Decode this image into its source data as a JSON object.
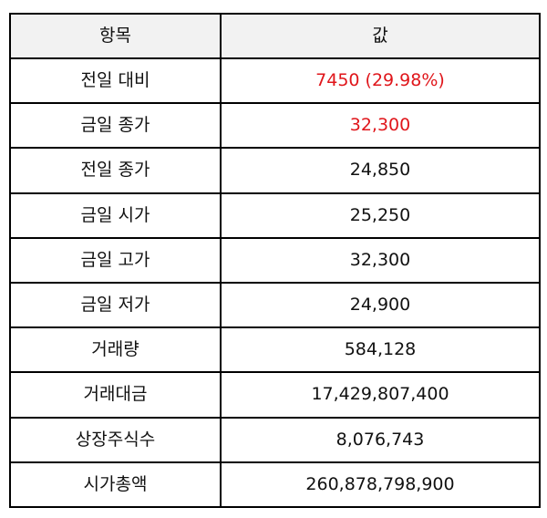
{
  "table": {
    "headers": {
      "item": "항목",
      "value": "값"
    },
    "rows": [
      {
        "label": "전일 대비",
        "value": "7450 (29.98%)",
        "highlight": true
      },
      {
        "label": "금일 종가",
        "value": "32,300",
        "highlight": true
      },
      {
        "label": "전일 종가",
        "value": "24,850",
        "highlight": false
      },
      {
        "label": "금일 시가",
        "value": "25,250",
        "highlight": false
      },
      {
        "label": "금일 고가",
        "value": "32,300",
        "highlight": false
      },
      {
        "label": "금일 저가",
        "value": "24,900",
        "highlight": false
      },
      {
        "label": "거래량",
        "value": "584,128",
        "highlight": false
      },
      {
        "label": "거래대금",
        "value": "17,429,807,400",
        "highlight": false
      },
      {
        "label": "상장주식수",
        "value": "8,076,743",
        "highlight": false
      },
      {
        "label": "시가총액",
        "value": "260,878,798,900",
        "highlight": false
      }
    ]
  },
  "colors": {
    "highlight": "#e0161b",
    "header_background": "#f2f2f2",
    "border": "#000000"
  }
}
